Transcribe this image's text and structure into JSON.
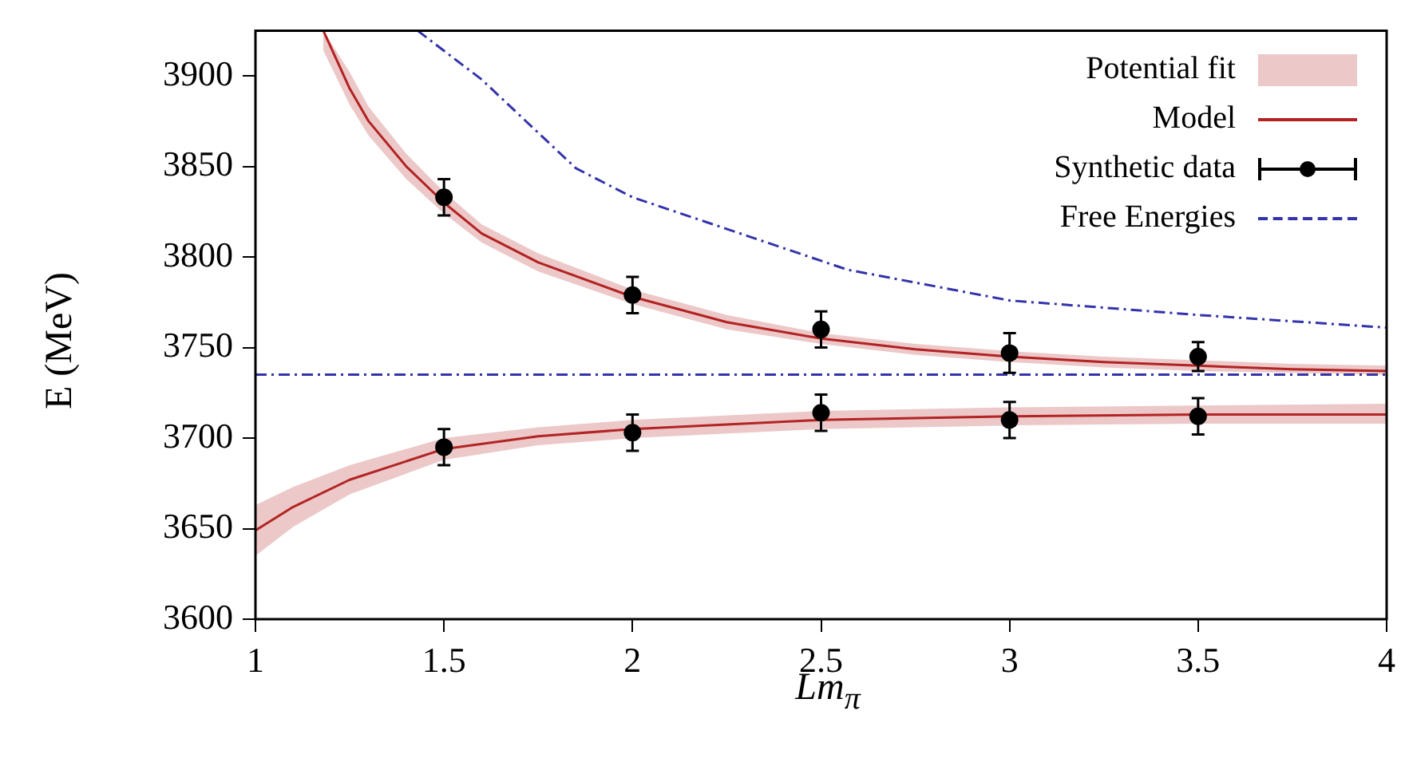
{
  "chart_data": {
    "type": "line",
    "xlabel": "Lm$_{π}$",
    "ylabel": "E (MeV)",
    "xlim": [
      1,
      4
    ],
    "xticks": [
      1,
      1.5,
      2,
      2.5,
      3,
      3.5,
      4
    ],
    "ylim": [
      3600,
      3925
    ],
    "yticks": [
      3600,
      3650,
      3700,
      3750,
      3800,
      3850,
      3900
    ],
    "grid": false,
    "legend": "top right",
    "annotations": [
      "Potential fit"
    ],
    "series": [
      {
        "name": "Model",
        "type": "line",
        "color": "#b22222",
        "line_style": "solid",
        "marker": "none",
        "x": [
          1.18,
          1.25,
          1.3,
          1.4,
          1.5,
          1.6,
          1.75,
          2,
          2.25,
          2.5,
          2.75,
          3,
          3.25,
          3.5,
          3.75,
          4
        ],
        "values": [
          3925,
          3893,
          3875,
          3850,
          3830,
          3813,
          3797,
          3778,
          3764,
          3755,
          3749,
          3745,
          3742,
          3740,
          3738,
          3737
        ],
        "lower": [
          3914,
          3884,
          3867,
          3843,
          3824,
          3808,
          3792,
          3774,
          3760,
          3752,
          3746,
          3742,
          3739,
          3737,
          3736,
          3735
        ],
        "upper": [
          3925,
          3902,
          3883,
          3857,
          3836,
          3818,
          3802,
          3782,
          3768,
          3758,
          3752,
          3748,
          3745,
          3743,
          3741,
          3740
        ]
      },
      {
        "type": "line",
        "color": "#b32424",
        "line_style": "solid",
        "marker": "none",
        "x": [
          1,
          1.1,
          1.25,
          1.5,
          1.75,
          2,
          2.5,
          3,
          3.5,
          4
        ],
        "values": [
          3649,
          3662,
          3677,
          3694,
          3701,
          3705,
          3710,
          3712,
          3713,
          3713
        ],
        "lower": [
          3635,
          3651,
          3669,
          3688,
          3696,
          3700,
          3705,
          3707,
          3708,
          3708
        ],
        "upper": [
          3663,
          3673,
          3685,
          3700,
          3706,
          3710,
          3715,
          3717,
          3718,
          3719
        ]
      },
      {
        "name": "Synthetic data",
        "type": "scatter",
        "color": "#000000",
        "marker": "circle",
        "x": [
          1.5,
          2,
          2.5,
          3,
          3.5,
          1.5,
          2,
          2.5,
          3,
          3.5
        ],
        "values": [
          3833,
          3779,
          3760,
          3747,
          3745,
          3695,
          3703,
          3714,
          3710,
          3712
        ],
        "errors": [
          10,
          10,
          10,
          11,
          8,
          10,
          10,
          10,
          10,
          10
        ]
      },
      {
        "name": "Free Energies",
        "type": "line",
        "color": "#3333aa",
        "line_style": "dashed",
        "marker": "none",
        "x": [
          1.43,
          1.6,
          1.85,
          2,
          2.2,
          2.57,
          3,
          3.5,
          4
        ],
        "values": [
          3925,
          3898,
          3849,
          3833,
          3819,
          3793,
          3776,
          3768,
          3761
        ]
      },
      {
        "type": "line",
        "color": "#3333aa",
        "line_style": "dashed",
        "marker": "none",
        "x": [
          1,
          4
        ],
        "values": [
          3735,
          3735
        ]
      }
    ]
  }
}
